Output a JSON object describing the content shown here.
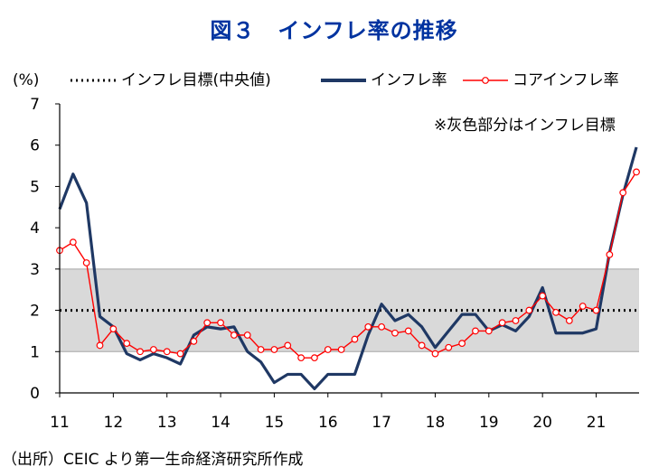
{
  "title": "図３　インフレ率の推移",
  "source": "（出所）CEIC より第一生命経済研究所作成",
  "chart_data": {
    "type": "line",
    "ylabel": "(%)",
    "ylim": [
      0,
      7
    ],
    "xlim": [
      11,
      21.8
    ],
    "x_ticks": [
      "11",
      "12",
      "13",
      "14",
      "15",
      "16",
      "17",
      "18",
      "19",
      "20",
      "21"
    ],
    "y_ticks": [
      "0",
      "1",
      "2",
      "3",
      "4",
      "5",
      "6",
      "7"
    ],
    "note": "※灰色部分はインフレ目標",
    "target_band": [
      1,
      3
    ],
    "legend_position": "top",
    "series": [
      {
        "name": "インフレ目標(中央値)",
        "style": "dotted",
        "color": "#000000",
        "x": [
          11,
          21.8
        ],
        "values": [
          2,
          2
        ]
      },
      {
        "name": "インフレ率",
        "style": "solid-thick",
        "color": "#1f3864",
        "x": [
          11.0,
          11.25,
          11.5,
          11.75,
          12.0,
          12.25,
          12.5,
          12.75,
          13.0,
          13.25,
          13.5,
          13.75,
          14.0,
          14.25,
          14.5,
          14.75,
          15.0,
          15.25,
          15.5,
          15.75,
          16.0,
          16.25,
          16.5,
          16.75,
          17.0,
          17.25,
          17.5,
          17.75,
          18.0,
          18.25,
          18.5,
          18.75,
          19.0,
          19.25,
          19.5,
          19.75,
          20.0,
          20.25,
          20.5,
          20.75,
          21.0,
          21.25,
          21.5,
          21.75
        ],
        "values": [
          4.45,
          5.3,
          4.6,
          1.85,
          1.6,
          0.95,
          0.8,
          0.95,
          0.85,
          0.7,
          1.4,
          1.6,
          1.55,
          1.6,
          1.0,
          0.75,
          0.25,
          0.45,
          0.45,
          0.1,
          0.45,
          0.45,
          0.45,
          1.4,
          2.15,
          1.75,
          1.9,
          1.6,
          1.1,
          1.5,
          1.9,
          1.9,
          1.5,
          1.65,
          1.5,
          1.85,
          2.55,
          1.45,
          1.45,
          1.45,
          1.55,
          3.4,
          4.8,
          5.95
        ]
      },
      {
        "name": "コアインフレ率",
        "style": "thin-markers",
        "color": "#ff0000",
        "x": [
          11.0,
          11.25,
          11.5,
          11.75,
          12.0,
          12.25,
          12.5,
          12.75,
          13.0,
          13.25,
          13.5,
          13.75,
          14.0,
          14.25,
          14.5,
          14.75,
          15.0,
          15.25,
          15.5,
          15.75,
          16.0,
          16.25,
          16.5,
          16.75,
          17.0,
          17.25,
          17.5,
          17.75,
          18.0,
          18.25,
          18.5,
          18.75,
          19.0,
          19.25,
          19.5,
          19.75,
          20.0,
          20.25,
          20.5,
          20.75,
          21.0,
          21.25,
          21.5,
          21.75
        ],
        "values": [
          3.45,
          3.65,
          3.15,
          1.15,
          1.55,
          1.2,
          1.0,
          1.05,
          1.0,
          0.95,
          1.25,
          1.7,
          1.7,
          1.4,
          1.4,
          1.05,
          1.05,
          1.15,
          0.85,
          0.85,
          1.05,
          1.05,
          1.3,
          1.6,
          1.6,
          1.45,
          1.5,
          1.15,
          0.95,
          1.1,
          1.2,
          1.5,
          1.5,
          1.7,
          1.75,
          2.0,
          2.35,
          1.95,
          1.75,
          2.1,
          2.0,
          3.35,
          4.85,
          5.35
        ]
      }
    ]
  }
}
